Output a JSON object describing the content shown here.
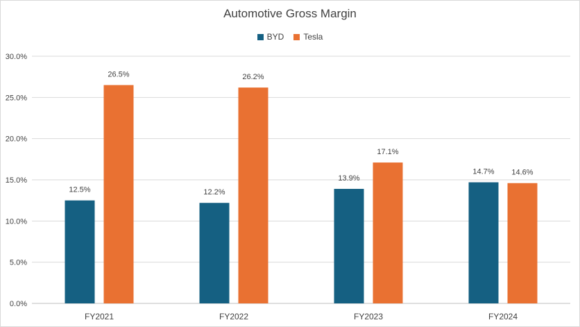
{
  "chart_data": {
    "type": "bar",
    "title": "Automotive Gross Margin",
    "categories": [
      "FY2021",
      "FY2022",
      "FY2023",
      "FY2024"
    ],
    "series": [
      {
        "name": "BYD",
        "values": [
          12.5,
          12.2,
          13.9,
          14.7
        ],
        "labels": [
          "12.5%",
          "12.2%",
          "13.9%",
          "14.7%"
        ],
        "color": "#156082"
      },
      {
        "name": "Tesla",
        "values": [
          26.5,
          26.2,
          17.1,
          14.6
        ],
        "labels": [
          "26.5%",
          "26.2%",
          "17.1%",
          "14.6%"
        ],
        "color": "#E97132"
      }
    ],
    "y_ticks": [
      "0.0%",
      "5.0%",
      "10.0%",
      "15.0%",
      "20.0%",
      "25.0%",
      "30.0%"
    ],
    "ylim": [
      0,
      30
    ],
    "xlabel": "",
    "ylabel": "",
    "grid": true,
    "legend_position": "top"
  }
}
